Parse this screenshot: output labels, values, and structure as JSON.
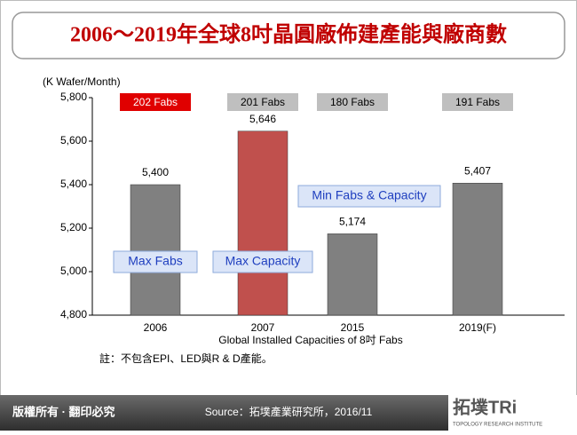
{
  "chart_data": {
    "type": "bar",
    "title": "2006～2019年全球8吋晶圓廠佈建產能與廠商數",
    "y_label": "(K Wafer/Month)",
    "x_label": "Global Installed Capacities of 8吋 Fabs",
    "categories": [
      "2006",
      "2007",
      "2015",
      "2019(F)"
    ],
    "values": [
      5400,
      5646,
      5174,
      5407
    ],
    "value_labels": [
      "5,400",
      "5,646",
      "5,174",
      "5,407"
    ],
    "colors": [
      "#808080",
      "#c0504d",
      "#808080",
      "#808080"
    ],
    "fab_labels": [
      "202 Fabs",
      "201 Fabs",
      "180 Fabs",
      "191 Fabs"
    ],
    "fab_label_colors": [
      "#e00000",
      "#bfbfbf",
      "#bfbfbf",
      "#bfbfbf"
    ],
    "annotations": [
      "Max Fabs",
      "Max Capacity",
      "Min Fabs & Capacity"
    ],
    "ylim": [
      4800,
      5800
    ],
    "yticks": [
      {
        "value": 4800,
        "label": "4,800"
      },
      {
        "value": 5000,
        "label": "5,000"
      },
      {
        "value": 5200,
        "label": "5,200"
      },
      {
        "value": 5400,
        "label": "5,400"
      },
      {
        "value": 5600,
        "label": "5,600"
      },
      {
        "value": 5800,
        "label": "5,800"
      }
    ]
  },
  "note": "註：不包含EPI、LED與R & D產能。",
  "footer": {
    "copyright": "版權所有 · 翻印必究",
    "source": "Source：拓墣產業研究所，2016/11",
    "logo": "拓墣TRi",
    "logo_sub": "TOPOLOGY RESEARCH INSTITUTE"
  }
}
